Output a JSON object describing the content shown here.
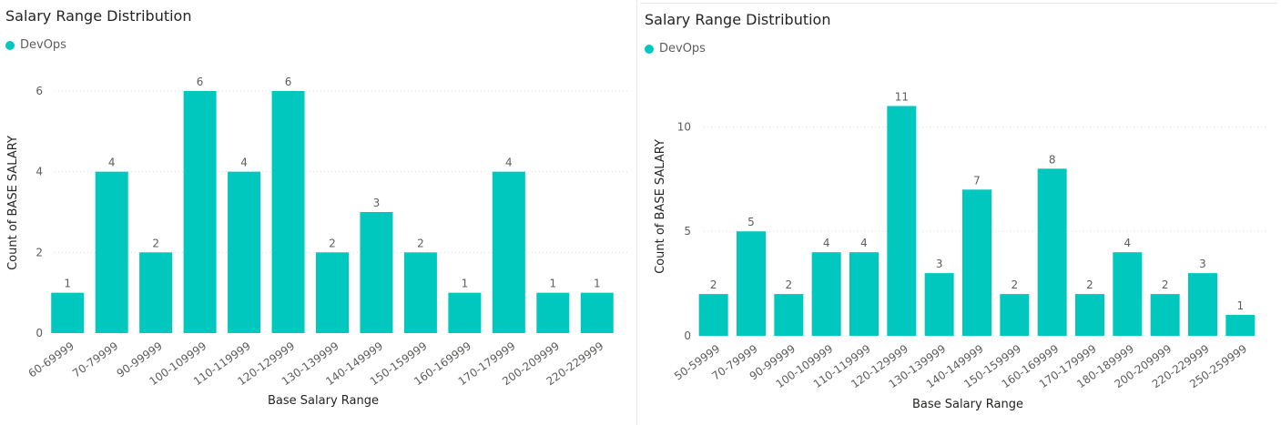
{
  "colors": {
    "bar": "#01c8be",
    "grid": "#dcdcdc"
  },
  "charts": [
    {
      "title": "Salary Range Distribution",
      "legend": {
        "label": "DevOps",
        "color": "#01c8be"
      },
      "chart_data": {
        "type": "bar",
        "title": "Salary Range Distribution",
        "xlabel": "Base Salary Range",
        "ylabel": "Count of BASE SALARY",
        "ylim": [
          0,
          6
        ],
        "yticks": [
          0,
          2,
          4,
          6
        ],
        "grid": true,
        "legend_placement": "top-left",
        "categories": [
          "60-69999",
          "70-79999",
          "90-99999",
          "100-109999",
          "110-119999",
          "120-129999",
          "130-139999",
          "140-149999",
          "150-159999",
          "160-169999",
          "170-179999",
          "200-209999",
          "220-229999"
        ],
        "series": [
          {
            "name": "DevOps",
            "values": [
              1,
              4,
              2,
              6,
              4,
              6,
              2,
              3,
              2,
              1,
              4,
              1,
              1
            ]
          }
        ]
      }
    },
    {
      "title": "Salary Range Distribution",
      "legend": {
        "label": "DevOps",
        "color": "#01c8be"
      },
      "chart_data": {
        "type": "bar",
        "title": "Salary Range Distribution",
        "xlabel": "Base Salary Range",
        "ylabel": "Count of BASE SALARY",
        "ylim": [
          0,
          11.5
        ],
        "yticks": [
          0,
          5,
          10
        ],
        "grid": true,
        "legend_placement": "top-left",
        "categories": [
          "50-59999",
          "70-79999",
          "90-99999",
          "100-109999",
          "110-119999",
          "120-129999",
          "130-139999",
          "140-149999",
          "150-159999",
          "160-169999",
          "170-179999",
          "180-189999",
          "200-209999",
          "220-229999",
          "250-259999"
        ],
        "series": [
          {
            "name": "DevOps",
            "values": [
              2,
              5,
              2,
              4,
              4,
              11,
              3,
              7,
              2,
              8,
              2,
              4,
              2,
              3,
              1
            ]
          }
        ]
      }
    }
  ]
}
